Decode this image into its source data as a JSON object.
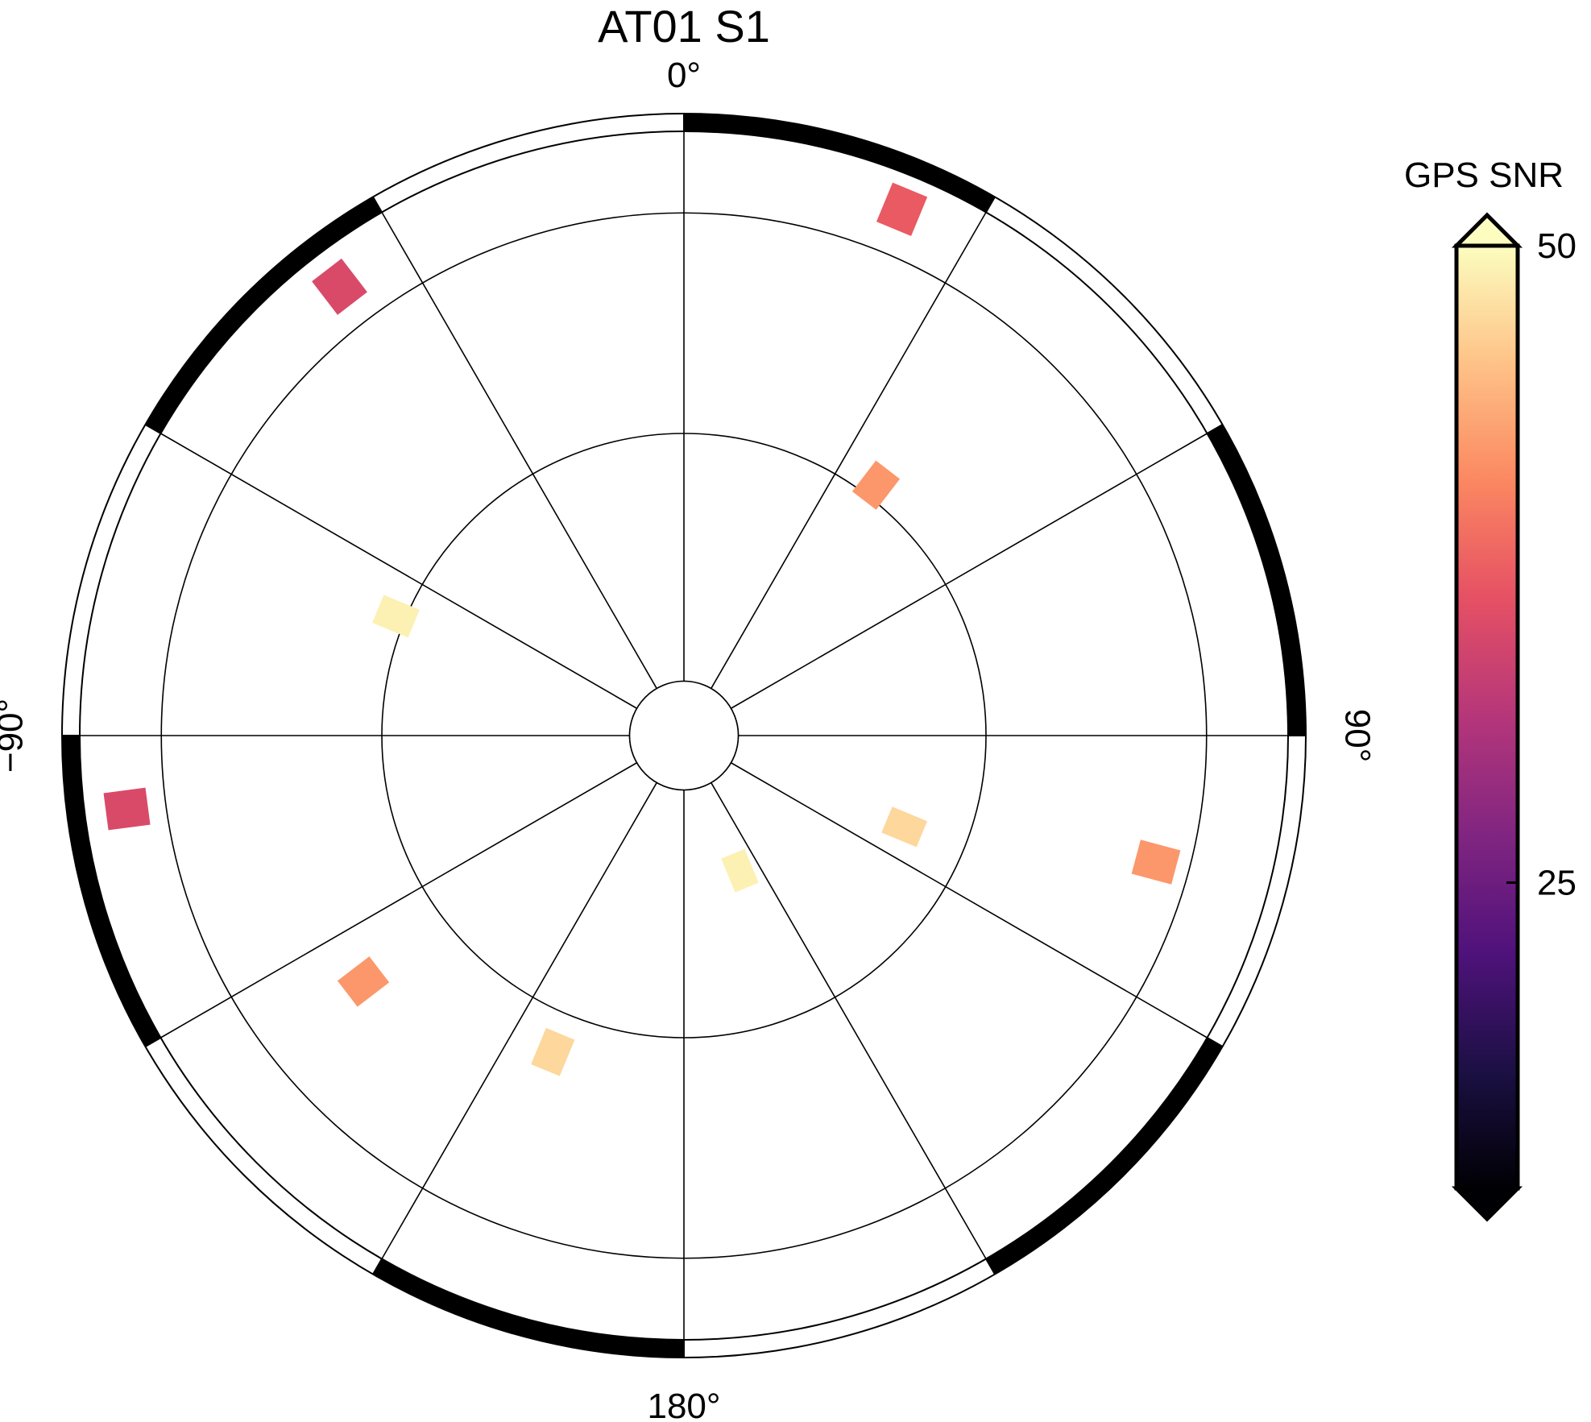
{
  "chart_data": {
    "type": "polar-heatmap",
    "title": "AT01 S1",
    "angle_labels": [
      {
        "angle": 0,
        "text": "0°"
      },
      {
        "angle": 90,
        "text": "90°"
      },
      {
        "angle": 180,
        "text": "180°"
      },
      {
        "angle": -90,
        "text": "−90°"
      }
    ],
    "angular_grid_step_deg": 30,
    "radial_rings": [
      0.09,
      0.5,
      0.865
    ],
    "colorbar": {
      "label": "GPS SNR",
      "ticks": [
        {
          "value": 25,
          "text": "25"
        },
        {
          "value": 50,
          "text": "50"
        }
      ],
      "range": [
        13,
        50
      ],
      "extend": "both",
      "colormap": [
        "#000004",
        "#1c1044",
        "#4f127b",
        "#812581",
        "#b5367a",
        "#e55064",
        "#fb8761",
        "#fec287",
        "#fcfdbf"
      ]
    },
    "cells": [
      {
        "azimuth": 22.5,
        "radius": 1.48,
        "snr": 37
      },
      {
        "azimuth": 37.5,
        "radius": 0.82,
        "snr": 42
      },
      {
        "azimuth": -37.5,
        "radius": 1.47,
        "snr": 35
      },
      {
        "azimuth": -67.5,
        "radius": 0.81,
        "snr": 49
      },
      {
        "azimuth": -97.5,
        "radius": 1.46,
        "snr": 35
      },
      {
        "azimuth": -127.5,
        "radius": 1.05,
        "snr": 42
      },
      {
        "azimuth": -157.5,
        "radius": 0.89,
        "snr": 47
      },
      {
        "azimuth": 157.5,
        "radius": 0.38,
        "snr": 49
      },
      {
        "azimuth": 112.5,
        "radius": 0.62,
        "snr": 47
      },
      {
        "azimuth": 105,
        "radius": 1.27,
        "snr": 42
      }
    ]
  }
}
